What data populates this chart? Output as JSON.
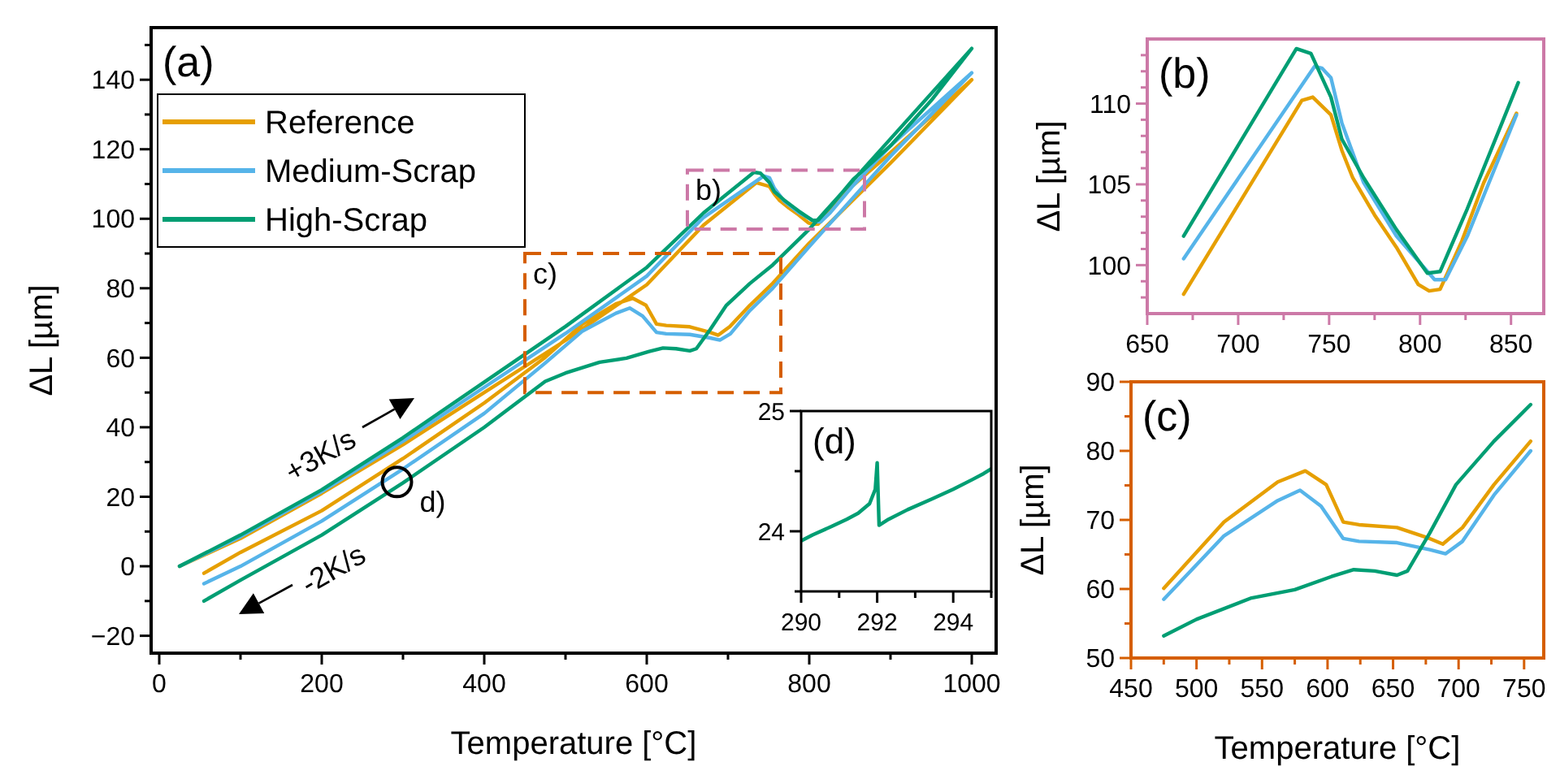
{
  "chart_data": [
    {
      "type": "line",
      "xlabel": "Temperature [°C]",
      "ylabel": "ΔL [µm]",
      "xlim": [
        -10,
        1030
      ],
      "ylim": [
        -25,
        155
      ],
      "xticks": [
        0,
        {
          "value": 100,
          "label": null
        },
        200,
        {
          "value": 300,
          "label": null
        },
        400,
        {
          "value": 500,
          "label": null
        },
        600,
        {
          "value": 700,
          "label": null
        },
        800,
        {
          "value": 900,
          "label": null
        },
        1000
      ],
      "yticks": [
        -20,
        {
          "value": -10,
          "label": null
        },
        0,
        {
          "value": 10,
          "label": null
        },
        20,
        {
          "value": 30,
          "label": null
        },
        40,
        {
          "value": 50,
          "label": null
        },
        60,
        {
          "value": 70,
          "label": null
        },
        80,
        {
          "value": 90,
          "label": null
        },
        100,
        {
          "value": 110,
          "label": null
        },
        120,
        {
          "value": 130,
          "label": null
        },
        140,
        {
          "value": 150,
          "label": null
        }
      ],
      "legend": "top left",
      "grid": false,
      "series": [
        {
          "name": "Reference",
          "color": "#e69f00",
          "x": [
            25,
            100,
            200,
            300,
            400,
            500,
            600,
            670,
            735,
            751,
            757,
            763,
            775,
            787,
            799,
            805,
            811,
            823,
            835,
            853,
            900,
            1000,
            900,
            800,
            755,
            727,
            702,
            688,
            678,
            653,
            624,
            612,
            599,
            583,
            562,
            521,
            475,
            400,
            300,
            200,
            100,
            55
          ],
          "values": [
            0,
            8,
            21,
            35,
            50,
            65,
            81,
            98.2,
            110.4,
            109.3,
            107.1,
            105.4,
            103.1,
            101.1,
            98.8,
            98.4,
            98.5,
            101.5,
            105.1,
            109.4,
            119,
            140,
            116,
            93,
            81.4,
            75.1,
            68.9,
            66.5,
            67.3,
            68.9,
            69.3,
            69.7,
            75.1,
            77.1,
            75.5,
            69.7,
            60.1,
            47,
            31,
            16,
            4,
            -2
          ]
        },
        {
          "name": "Medium-Scrap",
          "color": "#56b4e9",
          "x": [
            25,
            100,
            200,
            300,
            400,
            500,
            600,
            670,
            744,
            751,
            757,
            769,
            787,
            808,
            814,
            826,
            853,
            900,
            1000,
            900,
            800,
            755,
            727,
            703,
            690,
            678,
            653,
            624,
            612,
            595,
            579,
            562,
            521,
            475,
            400,
            300,
            200,
            100,
            55
          ],
          "values": [
            0,
            8.5,
            21.5,
            36,
            51.5,
            67,
            83.5,
            100.4,
            112.3,
            111.8,
            108.8,
            105.1,
            101.8,
            99.1,
            99.1,
            101.8,
            109.3,
            121,
            142,
            118,
            92,
            80,
            73.6,
            66.9,
            65.1,
            65.7,
            66.7,
            66.9,
            67.3,
            72,
            74.3,
            72.8,
            67.7,
            58.5,
            44,
            28,
            13,
            0,
            -5
          ]
        },
        {
          "name": "High-Scrap",
          "color": "#009e73",
          "x": [
            25,
            100,
            200,
            300,
            400,
            500,
            600,
            670,
            732,
            740,
            751,
            757,
            769,
            787,
            804,
            811,
            826,
            854,
            900,
            950,
            1000,
            900,
            800,
            755,
            727,
            698,
            678,
            661,
            653,
            636,
            620,
            603,
            575,
            542,
            500,
            475,
            400,
            300,
            200,
            100,
            55
          ],
          "values": [
            0,
            9,
            22,
            37,
            53,
            69,
            86,
            101.7,
            113.4,
            113.1,
            110.4,
            107.8,
            105.4,
            102.2,
            99.5,
            99.6,
            103.5,
            111.3,
            121,
            134,
            149,
            123,
            97,
            86.7,
            81.4,
            75.1,
            68.1,
            62.6,
            62,
            62.6,
            62.8,
            61.8,
            59.9,
            58.7,
            55.6,
            53.2,
            40,
            24,
            9,
            -4,
            -10
          ]
        }
      ],
      "annotations": [
        "(a)",
        "b)",
        "c)",
        "d)",
        "+3K/s",
        "-2K/s"
      ]
    },
    {
      "type": "line",
      "ylabel": "ΔL [µm]",
      "xlim": [
        650,
        868
      ],
      "ylim": [
        97,
        114
      ],
      "xticks": [
        650,
        {
          "value": 675,
          "label": null
        },
        700,
        {
          "value": 725,
          "label": null
        },
        750,
        {
          "value": 775,
          "label": null
        },
        800,
        {
          "value": 825,
          "label": null
        },
        850
      ],
      "yticks": [
        {
          "value": 98,
          "label": null
        },
        {
          "value": 99,
          "label": null
        },
        100,
        {
          "value": 101,
          "label": null
        },
        {
          "value": 102,
          "label": null
        },
        {
          "value": 103,
          "label": null
        },
        {
          "value": 104,
          "label": null
        },
        105,
        {
          "value": 106,
          "label": null
        },
        {
          "value": 107,
          "label": null
        },
        {
          "value": 108,
          "label": null
        },
        {
          "value": 109,
          "label": null
        },
        110,
        {
          "value": 111,
          "label": null
        },
        {
          "value": 112,
          "label": null
        },
        {
          "value": 113,
          "label": null
        }
      ],
      "legend": false,
      "grid": false,
      "series": [
        {
          "color": "#e69f00",
          "x": [
            670,
            735,
            741,
            751,
            757,
            763,
            775,
            787,
            799,
            805,
            811,
            823,
            835,
            853
          ],
          "values": [
            98.2,
            110.2,
            110.4,
            109.3,
            107.1,
            105.4,
            103.1,
            101.1,
            98.8,
            98.4,
            98.5,
            101.5,
            105.1,
            109.4
          ]
        },
        {
          "color": "#56b4e9",
          "x": [
            670,
            742,
            746,
            751,
            757,
            769,
            787,
            808,
            814,
            826,
            853
          ],
          "values": [
            100.4,
            112.3,
            112.2,
            111.6,
            108.8,
            105.1,
            101.8,
            99.1,
            99.1,
            101.8,
            109.3
          ]
        },
        {
          "color": "#009e73",
          "x": [
            670,
            732,
            740,
            751,
            757,
            769,
            787,
            804,
            811,
            826,
            854
          ],
          "values": [
            101.8,
            113.4,
            113.1,
            110.4,
            107.8,
            105.4,
            102.2,
            99.5,
            99.6,
            103.5,
            111.3
          ]
        }
      ],
      "annotations": [
        "(b)"
      ]
    },
    {
      "type": "line",
      "xlabel": "Temperature [°C]",
      "ylabel": "ΔL [µm]",
      "xlim": [
        450,
        765
      ],
      "ylim": [
        50,
        90
      ],
      "xticks": [
        450,
        {
          "value": 475,
          "label": null
        },
        500,
        {
          "value": 525,
          "label": null
        },
        550,
        {
          "value": 575,
          "label": null
        },
        600,
        {
          "value": 625,
          "label": null
        },
        650,
        {
          "value": 675,
          "label": null
        },
        700,
        {
          "value": 725,
          "label": null
        },
        750
      ],
      "yticks": [
        50,
        {
          "value": 55,
          "label": null
        },
        60,
        {
          "value": 65,
          "label": null
        },
        70,
        {
          "value": 75,
          "label": null
        },
        80,
        {
          "value": 85,
          "label": null
        },
        90
      ],
      "legend": false,
      "grid": false,
      "series": [
        {
          "color": "#e69f00",
          "x": [
            475,
            521,
            562,
            583,
            599,
            612,
            624,
            653,
            678,
            688,
            703,
            727,
            755
          ],
          "values": [
            60.1,
            69.7,
            75.5,
            77.1,
            75.1,
            69.7,
            69.3,
            68.9,
            67.3,
            66.5,
            68.9,
            75.1,
            81.4
          ]
        },
        {
          "color": "#56b4e9",
          "x": [
            475,
            521,
            562,
            579,
            595,
            612,
            624,
            653,
            678,
            690,
            703,
            727,
            755
          ],
          "values": [
            58.5,
            67.7,
            72.8,
            74.3,
            72,
            67.3,
            66.9,
            66.7,
            65.7,
            65.1,
            66.9,
            73.6,
            80
          ]
        },
        {
          "color": "#009e73",
          "x": [
            475,
            500,
            542,
            575,
            603,
            620,
            636,
            653,
            661,
            678,
            698,
            727,
            755
          ],
          "values": [
            53.2,
            55.6,
            58.7,
            59.9,
            61.8,
            62.8,
            62.6,
            62,
            62.6,
            68.1,
            75.1,
            81.4,
            86.7
          ]
        }
      ],
      "annotations": [
        "(c)"
      ]
    },
    {
      "type": "line",
      "xlim": [
        290,
        295
      ],
      "ylim": [
        23.5,
        25
      ],
      "xticks": [
        290,
        {
          "value": 291,
          "label": null
        },
        292,
        {
          "value": 293,
          "label": null
        },
        294,
        {
          "value": 295,
          "label": null
        }
      ],
      "yticks": [
        {
          "value": 23.5,
          "label": null
        },
        24,
        {
          "value": 24.5,
          "label": null
        },
        25
      ],
      "legend": false,
      "grid": false,
      "series": [
        {
          "color": "#009e73",
          "x": [
            290,
            290.3,
            290.8,
            291.2,
            291.5,
            291.8,
            291.95,
            292.0,
            292.05,
            292.3,
            292.8,
            293.45,
            294.0,
            294.5,
            294.8,
            295
          ],
          "values": [
            23.92,
            23.97,
            24.04,
            24.1,
            24.15,
            24.23,
            24.35,
            24.57,
            24.05,
            24.1,
            24.18,
            24.27,
            24.35,
            24.43,
            24.48,
            24.52
          ]
        }
      ],
      "annotations": [
        "(d)"
      ]
    }
  ]
}
